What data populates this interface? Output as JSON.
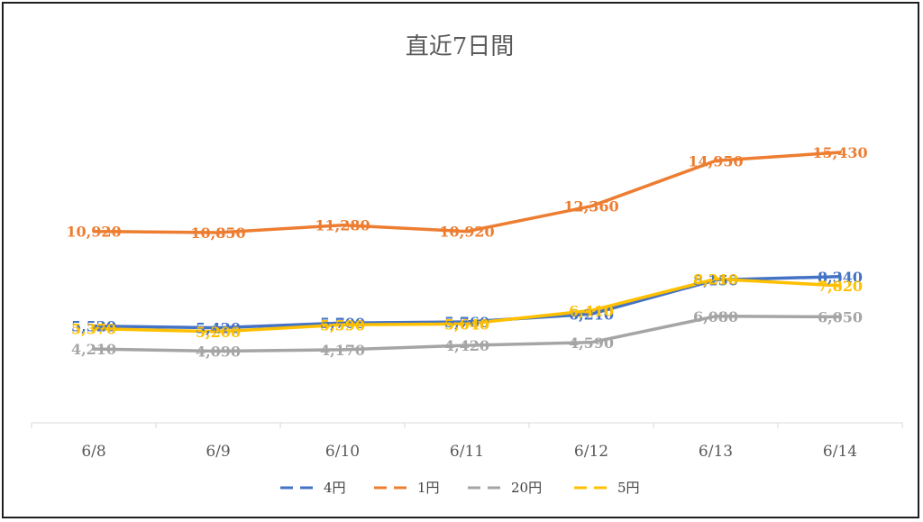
{
  "chart_data": {
    "type": "line",
    "title": "直近7日間",
    "xlabel": "",
    "ylabel": "",
    "categories": [
      "6/8",
      "6/9",
      "6/10",
      "6/11",
      "6/12",
      "6/13",
      "6/14"
    ],
    "ylim": [
      0,
      18000
    ],
    "grid": false,
    "legend": "bottom",
    "data_labels": true,
    "series": [
      {
        "name": "4円",
        "color": "#4472c4",
        "values": [
          5520,
          5420,
          5700,
          5760,
          6210,
          8150,
          8340
        ],
        "labels": [
          "5,520",
          "5,420",
          "5,700",
          "5,760",
          "6,210",
          "8,150",
          "8,340"
        ]
      },
      {
        "name": "1円",
        "color": "#ed7d31",
        "values": [
          10920,
          10850,
          11280,
          10920,
          12360,
          14950,
          15430
        ],
        "labels": [
          "10,920",
          "10,850",
          "11,280",
          "10,920",
          "12,360",
          "14,950",
          "15,430"
        ]
      },
      {
        "name": "20円",
        "color": "#a5a5a5",
        "values": [
          4210,
          4090,
          4170,
          4420,
          4590,
          6080,
          6050
        ],
        "labels": [
          "4,210",
          "4,090",
          "4,170",
          "4,420",
          "4,590",
          "6,080",
          "6,050"
        ]
      },
      {
        "name": "5円",
        "color": "#ffc000",
        "values": [
          5370,
          5200,
          5590,
          5640,
          6410,
          8210,
          7820
        ],
        "labels": [
          "5,370",
          "5,200",
          "5,590",
          "5,640",
          "6,410",
          "8,210",
          "7,820"
        ]
      }
    ]
  }
}
